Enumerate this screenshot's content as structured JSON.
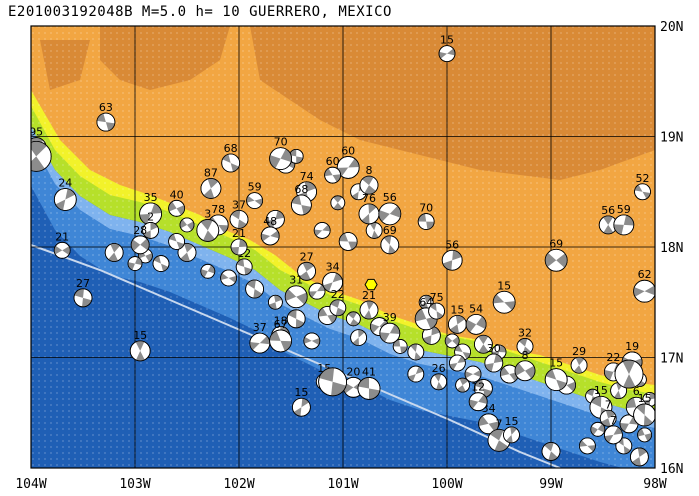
{
  "title": "E201003192048B M=5.0 h= 10 GUERRERO, MEXICO",
  "lon_labels": [
    "104W",
    "103W",
    "102W",
    "101W",
    "100W",
    "99W",
    "98W"
  ],
  "lat_labels": [
    "20N",
    "19N",
    "18N",
    "17N",
    "16N"
  ],
  "extent": {
    "lon_min": -104,
    "lon_max": -98,
    "lat_min": 16,
    "lat_max": 20
  },
  "colors": {
    "deep_ocean": "#1f5fb5",
    "mid_ocean": "#3f86d6",
    "shelf": "#7fb3ee",
    "coast_low": "#b6e02a",
    "low_land": "#f2f22a",
    "mid_land": "#f2a642",
    "high_land": "#d98a36",
    "grid": "#000000",
    "trench": "#c8d8ee",
    "mechanism_fill": "#8c8c8c"
  },
  "epicenter": {
    "lon": -100.73,
    "lat": 17.66
  },
  "events": [
    {
      "label": "15",
      "lon": -100.0,
      "lat": 19.75
    },
    {
      "label": "63",
      "lon": -103.28,
      "lat": 19.13
    },
    {
      "label": "95",
      "lon": -103.95,
      "lat": 18.9
    },
    {
      "label": "24",
      "lon": -103.67,
      "lat": 18.43
    },
    {
      "label": "21",
      "lon": -103.7,
      "lat": 17.97
    },
    {
      "label": "27",
      "lon": -103.5,
      "lat": 17.54
    },
    {
      "label": "15",
      "lon": -102.95,
      "lat": 17.06
    },
    {
      "label": "35",
      "lon": -102.85,
      "lat": 18.3
    },
    {
      "label": "40",
      "lon": -102.6,
      "lat": 18.35
    },
    {
      "label": "68",
      "lon": -102.08,
      "lat": 18.76
    },
    {
      "label": "87",
      "lon": -102.27,
      "lat": 18.53
    },
    {
      "label": "70",
      "lon": -101.6,
      "lat": 18.8
    },
    {
      "label": "59",
      "lon": -101.85,
      "lat": 18.42
    },
    {
      "label": "37",
      "lon": -102.0,
      "lat": 18.25
    },
    {
      "label": "74",
      "lon": -101.35,
      "lat": 18.5
    },
    {
      "label": "60",
      "lon": -100.95,
      "lat": 18.72
    },
    {
      "label": "60",
      "lon": -101.1,
      "lat": 18.65
    },
    {
      "label": "8",
      "lon": -100.75,
      "lat": 18.56
    },
    {
      "label": "76",
      "lon": -100.75,
      "lat": 18.3
    },
    {
      "label": "56",
      "lon": -100.55,
      "lat": 18.3
    },
    {
      "label": "70",
      "lon": -100.2,
      "lat": 18.23
    },
    {
      "label": "69",
      "lon": -100.55,
      "lat": 18.02
    },
    {
      "label": "56",
      "lon": -99.95,
      "lat": 17.88
    },
    {
      "label": "69",
      "lon": -98.95,
      "lat": 17.88
    },
    {
      "label": "52",
      "lon": -98.12,
      "lat": 18.5
    },
    {
      "label": "56",
      "lon": -98.45,
      "lat": 18.2
    },
    {
      "label": "59",
      "lon": -98.3,
      "lat": 18.2
    },
    {
      "label": "62",
      "lon": -98.1,
      "lat": 17.6
    },
    {
      "label": "12",
      "lon": -101.95,
      "lat": 17.82
    },
    {
      "label": "27",
      "lon": -101.35,
      "lat": 17.78
    },
    {
      "label": "34",
      "lon": -101.1,
      "lat": 17.68
    },
    {
      "label": "31",
      "lon": -101.45,
      "lat": 17.55
    },
    {
      "label": "22",
      "lon": -101.05,
      "lat": 17.45
    },
    {
      "label": "21",
      "lon": -100.75,
      "lat": 17.43
    },
    {
      "label": "39",
      "lon": -100.55,
      "lat": 17.22
    },
    {
      "label": "64",
      "lon": -100.2,
      "lat": 17.35
    },
    {
      "label": "75",
      "lon": -100.1,
      "lat": 17.42
    },
    {
      "label": "15",
      "lon": -99.9,
      "lat": 17.3
    },
    {
      "label": "54",
      "lon": -99.72,
      "lat": 17.3
    },
    {
      "label": "15",
      "lon": -99.45,
      "lat": 17.5
    },
    {
      "label": "32",
      "lon": -99.25,
      "lat": 17.1
    },
    {
      "label": "18",
      "lon": -101.6,
      "lat": 17.2
    },
    {
      "label": "37",
      "lon": -101.8,
      "lat": 17.13
    },
    {
      "label": "67",
      "lon": -101.6,
      "lat": 17.15
    },
    {
      "label": "15",
      "lon": -101.18,
      "lat": 16.78
    },
    {
      "label": "15",
      "lon": -101.4,
      "lat": 16.55
    },
    {
      "label": "20",
      "lon": -100.9,
      "lat": 16.73
    },
    {
      "label": "41",
      "lon": -100.75,
      "lat": 16.72
    },
    {
      "label": "26",
      "lon": -100.08,
      "lat": 16.78
    },
    {
      "label": "30",
      "lon": -99.55,
      "lat": 16.95
    },
    {
      "label": "8",
      "lon": -99.25,
      "lat": 16.88
    },
    {
      "label": "15",
      "lon": -98.95,
      "lat": 16.8
    },
    {
      "label": "29",
      "lon": -98.73,
      "lat": 16.93
    },
    {
      "label": "22",
      "lon": -98.4,
      "lat": 16.87
    },
    {
      "label": "19",
      "lon": -98.22,
      "lat": 16.96
    },
    {
      "label": "15",
      "lon": -98.52,
      "lat": 16.55
    },
    {
      "label": "7",
      "lon": -98.45,
      "lat": 16.45
    },
    {
      "label": "7",
      "lon": -98.4,
      "lat": 16.3
    },
    {
      "label": "34",
      "lon": -99.6,
      "lat": 16.4
    },
    {
      "label": "7",
      "lon": -99.5,
      "lat": 16.25
    },
    {
      "label": "15",
      "lon": -99.38,
      "lat": 16.3
    },
    {
      "label": "12",
      "lon": -99.7,
      "lat": 16.6
    },
    {
      "label": "6",
      "lon": -98.18,
      "lat": 16.55
    },
    {
      "label": "15",
      "lon": -98.1,
      "lat": 16.48
    },
    {
      "label": "2",
      "lon": -102.85,
      "lat": 18.15
    },
    {
      "label": "28",
      "lon": -102.95,
      "lat": 18.02
    },
    {
      "label": "78",
      "lon": -102.2,
      "lat": 18.2
    },
    {
      "label": "3",
      "lon": -102.3,
      "lat": 18.15
    },
    {
      "label": "21",
      "lon": -102.0,
      "lat": 18.0
    },
    {
      "label": "48",
      "lon": -101.7,
      "lat": 18.1
    },
    {
      "label": "68",
      "lon": -101.4,
      "lat": 18.38
    }
  ],
  "extra_mechanisms": [
    [
      -102.9,
      17.92
    ],
    [
      -102.75,
      17.85
    ],
    [
      -102.5,
      17.95
    ],
    [
      -102.3,
      17.78
    ],
    [
      -102.1,
      17.72
    ],
    [
      -101.85,
      17.62
    ],
    [
      -101.65,
      17.5
    ],
    [
      -101.25,
      17.6
    ],
    [
      -101.15,
      17.38
    ],
    [
      -100.9,
      17.35
    ],
    [
      -100.85,
      17.18
    ],
    [
      -100.65,
      17.28
    ],
    [
      -100.45,
      17.1
    ],
    [
      -100.3,
      17.05
    ],
    [
      -100.15,
      17.2
    ],
    [
      -99.95,
      17.15
    ],
    [
      -99.85,
      17.05
    ],
    [
      -99.65,
      17.12
    ],
    [
      -99.5,
      17.05
    ],
    [
      -99.75,
      16.85
    ],
    [
      -99.65,
      16.72
    ],
    [
      -99.85,
      16.75
    ],
    [
      -100.3,
      16.85
    ],
    [
      -98.85,
      16.75
    ],
    [
      -98.6,
      16.65
    ],
    [
      -98.35,
      16.7
    ],
    [
      -98.25,
      16.4
    ],
    [
      -98.1,
      16.3
    ],
    [
      -98.3,
      16.2
    ],
    [
      -98.15,
      16.1
    ],
    [
      -98.55,
      16.35
    ],
    [
      -98.65,
      16.2
    ],
    [
      -99.0,
      16.15
    ],
    [
      -98.05,
      16.62
    ],
    [
      -101.2,
      18.15
    ],
    [
      -100.95,
      18.05
    ],
    [
      -101.05,
      18.4
    ],
    [
      -100.85,
      18.5
    ],
    [
      -101.55,
      18.75
    ],
    [
      -101.45,
      18.82
    ],
    [
      -100.7,
      18.15
    ],
    [
      -101.65,
      18.25
    ],
    [
      -102.5,
      18.2
    ],
    [
      -102.6,
      18.05
    ],
    [
      -103.2,
      17.95
    ],
    [
      -103.0,
      17.85
    ],
    [
      -101.3,
      17.15
    ],
    [
      -101.45,
      17.35
    ],
    [
      -100.2,
      17.5
    ],
    [
      -99.9,
      16.95
    ],
    [
      -99.4,
      16.85
    ],
    [
      -98.15,
      16.8
    ]
  ]
}
